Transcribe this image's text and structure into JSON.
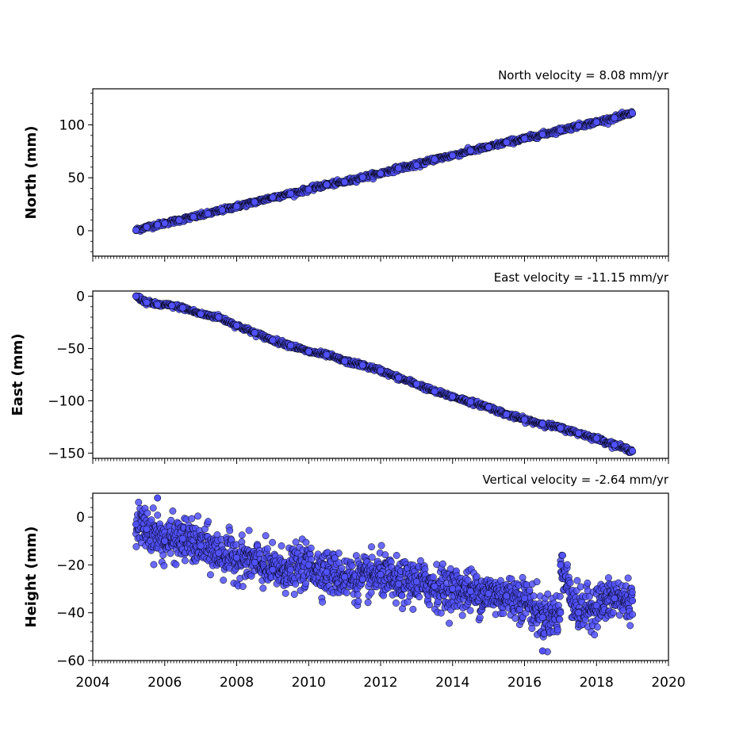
{
  "chart_data": [
    {
      "type": "scatter",
      "title": "North velocity = 8.08 mm/yr",
      "xlabel": "",
      "ylabel": "North (mm)",
      "xlim": [
        2004,
        2020
      ],
      "ylim": [
        -24,
        134
      ],
      "y_ticks": [
        0,
        50,
        100
      ],
      "y_tick_labels": [
        "0",
        "50",
        "100"
      ],
      "series": [
        {
          "trend": {
            "start": [
              2005.2,
              0
            ],
            "velocity_mm_per_yr": 8.08
          },
          "points": [
            [
              2005.2,
              0.5
            ],
            [
              2005.5,
              3.5
            ],
            [
              2005.8,
              5.5
            ],
            [
              2006.0,
              7.0
            ],
            [
              2006.4,
              10.0
            ],
            [
              2006.8,
              13.0
            ],
            [
              2007.2,
              16.0
            ],
            [
              2007.6,
              19.5
            ],
            [
              2008.0,
              23.0
            ],
            [
              2008.5,
              27.0
            ],
            [
              2009.0,
              31.5
            ],
            [
              2009.5,
              35.0
            ],
            [
              2010.0,
              39.0
            ],
            [
              2010.5,
              43.5
            ],
            [
              2011.0,
              46.0
            ],
            [
              2011.5,
              50.5
            ],
            [
              2012.0,
              54.0
            ],
            [
              2012.5,
              59.0
            ],
            [
              2013.0,
              62.0
            ],
            [
              2013.5,
              67.5
            ],
            [
              2014.0,
              71.0
            ],
            [
              2014.5,
              75.5
            ],
            [
              2015.0,
              79.0
            ],
            [
              2015.5,
              83.5
            ],
            [
              2016.0,
              87.0
            ],
            [
              2016.5,
              91.0
            ],
            [
              2017.0,
              95.0
            ],
            [
              2017.5,
              99.0
            ],
            [
              2018.0,
              102.5
            ],
            [
              2018.5,
              106.5
            ],
            [
              2019.0,
              111.0
            ]
          ]
        }
      ]
    },
    {
      "type": "scatter",
      "title": "East velocity = -11.15 mm/yr",
      "xlabel": "",
      "ylabel": "East (mm)",
      "xlim": [
        2004,
        2020
      ],
      "ylim": [
        -155,
        5
      ],
      "y_ticks": [
        0,
        -50,
        -100,
        -150
      ],
      "y_tick_labels": [
        "0",
        "−50",
        "−100",
        "−150"
      ],
      "series": [
        {
          "trend": {
            "start": [
              2005.2,
              -2
            ],
            "velocity_mm_per_yr": -11.15
          },
          "points": [
            [
              2005.2,
              0
            ],
            [
              2005.5,
              -6
            ],
            [
              2005.8,
              -8
            ],
            [
              2006.2,
              -9
            ],
            [
              2006.5,
              -11
            ],
            [
              2007.0,
              -17
            ],
            [
              2007.5,
              -20
            ],
            [
              2008.0,
              -28
            ],
            [
              2008.5,
              -35
            ],
            [
              2009.0,
              -42
            ],
            [
              2009.5,
              -47
            ],
            [
              2010.0,
              -53
            ],
            [
              2010.5,
              -56
            ],
            [
              2011.0,
              -62
            ],
            [
              2011.5,
              -66
            ],
            [
              2012.0,
              -71
            ],
            [
              2012.5,
              -78
            ],
            [
              2013.0,
              -84
            ],
            [
              2013.5,
              -91
            ],
            [
              2014.0,
              -96
            ],
            [
              2014.5,
              -101
            ],
            [
              2015.0,
              -106
            ],
            [
              2015.5,
              -113
            ],
            [
              2016.0,
              -118
            ],
            [
              2016.5,
              -122
            ],
            [
              2017.0,
              -126
            ],
            [
              2017.5,
              -131
            ],
            [
              2018.0,
              -136
            ],
            [
              2018.5,
              -142
            ],
            [
              2019.0,
              -148
            ]
          ]
        }
      ]
    },
    {
      "type": "scatter",
      "title": "Vertical velocity = -2.64 mm/yr",
      "xlabel": "",
      "ylabel": "Height (mm)",
      "xlim": [
        2004,
        2020
      ],
      "ylim": [
        -60,
        10
      ],
      "x_ticks": [
        2004,
        2006,
        2008,
        2010,
        2012,
        2014,
        2016,
        2018,
        2020
      ],
      "x_tick_labels": [
        "2004",
        "2006",
        "2008",
        "2010",
        "2012",
        "2014",
        "2016",
        "2018",
        "2020"
      ],
      "y_ticks": [
        0,
        -20,
        -40,
        -60
      ],
      "y_tick_labels": [
        "0",
        "−20",
        "−40",
        "−60"
      ],
      "series": [
        {
          "trend": {
            "start": [
              2005.2,
              -3
            ],
            "velocity_mm_per_yr": -2.64
          },
          "scatter_amplitude_mm": 8,
          "points": [
            [
              2005.2,
              -3
            ],
            [
              2005.5,
              -5
            ],
            [
              2005.8,
              8
            ],
            [
              2006.0,
              -10
            ],
            [
              2006.5,
              -9
            ],
            [
              2007.0,
              -12
            ],
            [
              2007.5,
              -15
            ],
            [
              2008.0,
              -17
            ],
            [
              2008.5,
              -19
            ],
            [
              2009.0,
              -22
            ],
            [
              2009.5,
              -22
            ],
            [
              2010.0,
              -20
            ],
            [
              2010.5,
              -23
            ],
            [
              2011.0,
              -25
            ],
            [
              2011.5,
              -26
            ],
            [
              2012.0,
              -24
            ],
            [
              2012.5,
              -28
            ],
            [
              2013.0,
              -27
            ],
            [
              2013.5,
              -29
            ],
            [
              2014.0,
              -30
            ],
            [
              2014.5,
              -31
            ],
            [
              2015.0,
              -32
            ],
            [
              2015.5,
              -33
            ],
            [
              2016.0,
              -34
            ],
            [
              2016.5,
              -42
            ],
            [
              2017.0,
              -40
            ],
            [
              2017.5,
              -40
            ],
            [
              2018.0,
              -37
            ],
            [
              2018.5,
              -34
            ],
            [
              2019.0,
              -35
            ],
            [
              2016.5,
              -56
            ],
            [
              2017.0,
              -20
            ]
          ]
        }
      ]
    }
  ],
  "style": {
    "marker_fill": "#5050ff",
    "marker_edge": "#000000"
  }
}
